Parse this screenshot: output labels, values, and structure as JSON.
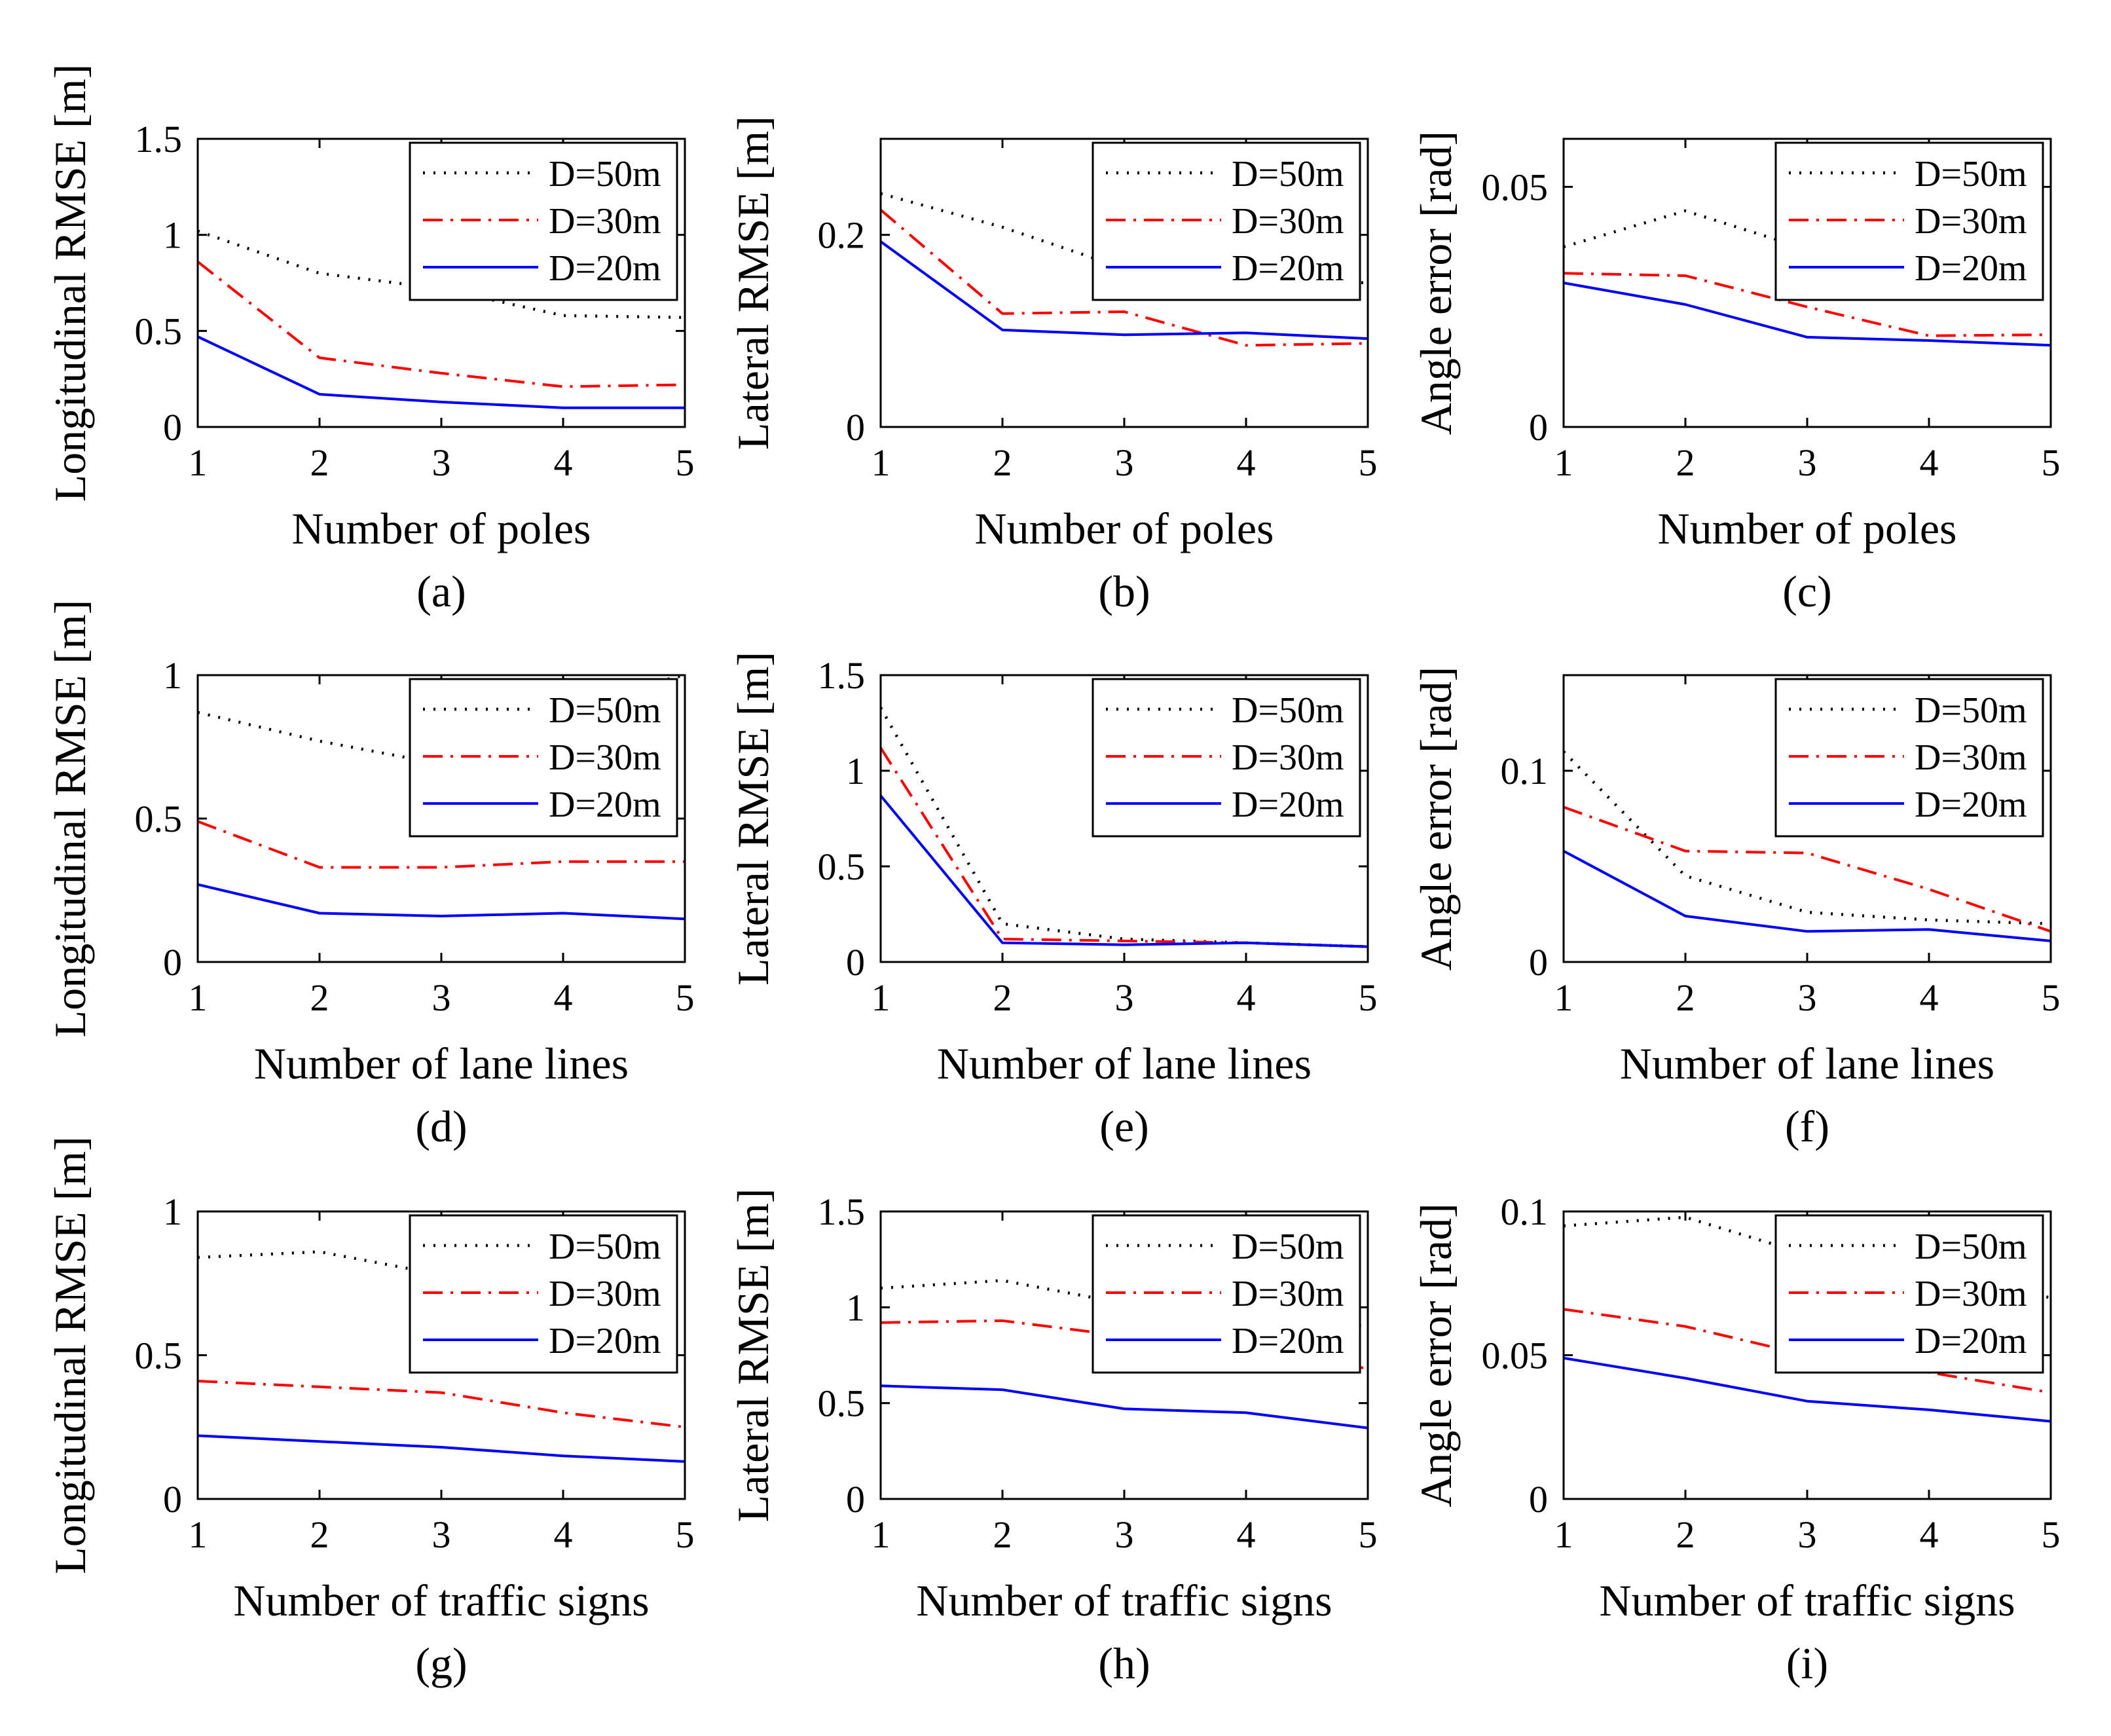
{
  "legend": {
    "entries": [
      "D=50m",
      "D=30m",
      "D=20m"
    ]
  },
  "series_styles": [
    {
      "name": "D=50m",
      "color": "#000000",
      "dash": "dotted"
    },
    {
      "name": "D=30m",
      "color": "#ff0000",
      "dash": "dashdot"
    },
    {
      "name": "D=20m",
      "color": "#0000ff",
      "dash": "solid"
    }
  ],
  "chart_data": [
    {
      "id": "a",
      "caption": "(a)",
      "type": "line",
      "xlabel": "Number of poles",
      "ylabel": "Longitudinal RMSE [m]",
      "x": [
        1,
        2,
        3,
        4,
        5
      ],
      "xlim": [
        1,
        5
      ],
      "xticks": [
        "1",
        "2",
        "3",
        "4",
        "5"
      ],
      "ylim": [
        0,
        1.5
      ],
      "yticks": [
        0,
        0.5,
        1,
        1.5
      ],
      "ytick_labels": [
        "0",
        "0.5",
        "1",
        "1.5"
      ],
      "legend": "top-right",
      "grid": false,
      "series": [
        {
          "name": "D=50m",
          "values": [
            1.02,
            0.8,
            0.72,
            0.58,
            0.57
          ]
        },
        {
          "name": "D=30m",
          "values": [
            0.86,
            0.36,
            0.28,
            0.21,
            0.22
          ]
        },
        {
          "name": "D=20m",
          "values": [
            0.47,
            0.17,
            0.13,
            0.1,
            0.1
          ]
        }
      ]
    },
    {
      "id": "b",
      "caption": "(b)",
      "type": "line",
      "xlabel": "Number of poles",
      "ylabel": "Lateral RMSE [m]",
      "x": [
        1,
        2,
        3,
        4,
        5
      ],
      "xlim": [
        1,
        5
      ],
      "xticks": [
        "1",
        "2",
        "3",
        "4",
        "5"
      ],
      "ylim": [
        0,
        0.3
      ],
      "yticks": [
        0,
        0.2
      ],
      "ytick_labels": [
        "0",
        "0.2"
      ],
      "legend": "top-right",
      "grid": false,
      "series": [
        {
          "name": "D=50m",
          "values": [
            0.243,
            0.208,
            0.165,
            0.155,
            0.15
          ]
        },
        {
          "name": "D=30m",
          "values": [
            0.226,
            0.118,
            0.12,
            0.085,
            0.087
          ]
        },
        {
          "name": "D=20m",
          "values": [
            0.193,
            0.101,
            0.096,
            0.098,
            0.092
          ]
        }
      ]
    },
    {
      "id": "c",
      "caption": "(c)",
      "type": "line",
      "xlabel": "Number of poles",
      "ylabel": "Angle error [rad]",
      "x": [
        1,
        2,
        3,
        4,
        5
      ],
      "xlim": [
        1,
        5
      ],
      "xticks": [
        "1",
        "2",
        "3",
        "4",
        "5"
      ],
      "ylim": [
        0,
        0.06
      ],
      "yticks": [
        0,
        0.05
      ],
      "ytick_labels": [
        "0",
        "0.05"
      ],
      "legend": "top-right",
      "grid": false,
      "series": [
        {
          "name": "D=50m",
          "values": [
            0.0375,
            0.045,
            0.037,
            0.042,
            0.047
          ]
        },
        {
          "name": "D=30m",
          "values": [
            0.032,
            0.0315,
            0.025,
            0.019,
            0.0192
          ]
        },
        {
          "name": "D=20m",
          "values": [
            0.03,
            0.0255,
            0.0187,
            0.018,
            0.017
          ]
        }
      ]
    },
    {
      "id": "d",
      "caption": "(d)",
      "type": "line",
      "xlabel": "Number of lane lines",
      "ylabel": "Longitudinal RMSE [m]",
      "x": [
        1,
        2,
        3,
        4,
        5
      ],
      "xlim": [
        1,
        5
      ],
      "xticks": [
        "1",
        "2",
        "3",
        "4",
        "5"
      ],
      "ylim": [
        0,
        1
      ],
      "yticks": [
        0,
        0.5,
        1
      ],
      "ytick_labels": [
        "0",
        "0.5",
        "1"
      ],
      "legend": "top-right",
      "grid": false,
      "series": [
        {
          "name": "D=50m",
          "values": [
            0.87,
            0.77,
            0.69,
            0.9,
            1.0
          ]
        },
        {
          "name": "D=30m",
          "values": [
            0.49,
            0.33,
            0.33,
            0.35,
            0.35
          ]
        },
        {
          "name": "D=20m",
          "values": [
            0.27,
            0.17,
            0.16,
            0.17,
            0.15
          ]
        }
      ]
    },
    {
      "id": "e",
      "caption": "(e)",
      "type": "line",
      "xlabel": "Number of lane lines",
      "ylabel": "Lateral RMSE [m]",
      "x": [
        1,
        2,
        3,
        4,
        5
      ],
      "xlim": [
        1,
        5
      ],
      "xticks": [
        "1",
        "2",
        "3",
        "4",
        "5"
      ],
      "ylim": [
        0,
        1.5
      ],
      "yticks": [
        0,
        0.5,
        1,
        1.5
      ],
      "ytick_labels": [
        "0",
        "0.5",
        "1",
        "1.5"
      ],
      "legend": "top-right",
      "grid": false,
      "series": [
        {
          "name": "D=50m",
          "values": [
            1.33,
            0.2,
            0.12,
            0.1,
            0.08
          ]
        },
        {
          "name": "D=30m",
          "values": [
            1.12,
            0.12,
            0.11,
            0.1,
            0.08
          ]
        },
        {
          "name": "D=20m",
          "values": [
            0.87,
            0.1,
            0.09,
            0.1,
            0.08
          ]
        }
      ]
    },
    {
      "id": "f",
      "caption": "(f)",
      "type": "line",
      "xlabel": "Number of lane lines",
      "ylabel": "Angle error [rad]",
      "x": [
        1,
        2,
        3,
        4,
        5
      ],
      "xlim": [
        1,
        5
      ],
      "xticks": [
        "1",
        "2",
        "3",
        "4",
        "5"
      ],
      "ylim": [
        0,
        0.15
      ],
      "yticks": [
        0,
        0.1
      ],
      "ytick_labels": [
        "0",
        "0.1"
      ],
      "legend": "top-right",
      "grid": false,
      "series": [
        {
          "name": "D=50m",
          "values": [
            0.11,
            0.045,
            0.026,
            0.022,
            0.02
          ]
        },
        {
          "name": "D=30m",
          "values": [
            0.081,
            0.058,
            0.057,
            0.038,
            0.016
          ]
        },
        {
          "name": "D=20m",
          "values": [
            0.058,
            0.024,
            0.016,
            0.017,
            0.011
          ]
        }
      ]
    },
    {
      "id": "g",
      "caption": "(g)",
      "type": "line",
      "xlabel": "Number of traffic signs",
      "ylabel": "Longitudinal RMSE [m]",
      "x": [
        1,
        2,
        3,
        4,
        5
      ],
      "xlim": [
        1,
        5
      ],
      "xticks": [
        "1",
        "2",
        "3",
        "4",
        "5"
      ],
      "ylim": [
        0,
        1
      ],
      "yticks": [
        0,
        0.5,
        1
      ],
      "ytick_labels": [
        "0",
        "0.5",
        "1"
      ],
      "legend": "top-right",
      "grid": false,
      "series": [
        {
          "name": "D=50m",
          "values": [
            0.84,
            0.86,
            0.78,
            0.7,
            0.66
          ]
        },
        {
          "name": "D=30m",
          "values": [
            0.41,
            0.39,
            0.37,
            0.3,
            0.25
          ]
        },
        {
          "name": "D=20m",
          "values": [
            0.22,
            0.2,
            0.18,
            0.15,
            0.13
          ]
        }
      ]
    },
    {
      "id": "h",
      "caption": "(h)",
      "type": "line",
      "xlabel": "Number of traffic signs",
      "ylabel": "Lateral RMSE [m]",
      "x": [
        1,
        2,
        3,
        4,
        5
      ],
      "xlim": [
        1,
        5
      ],
      "xticks": [
        "1",
        "2",
        "3",
        "4",
        "5"
      ],
      "ylim": [
        0,
        1.5
      ],
      "yticks": [
        0,
        0.5,
        1,
        1.5
      ],
      "ytick_labels": [
        "0",
        "0.5",
        "1",
        "1.5"
      ],
      "legend": "top-right",
      "grid": false,
      "series": [
        {
          "name": "D=50m",
          "values": [
            1.1,
            1.14,
            1.02,
            0.95,
            0.9
          ]
        },
        {
          "name": "D=30m",
          "values": [
            0.92,
            0.93,
            0.85,
            0.78,
            0.68
          ]
        },
        {
          "name": "D=20m",
          "values": [
            0.59,
            0.57,
            0.47,
            0.45,
            0.37
          ]
        }
      ]
    },
    {
      "id": "i",
      "caption": "(i)",
      "type": "line",
      "xlabel": "Number of traffic signs",
      "ylabel": "Angle error [rad]",
      "x": [
        1,
        2,
        3,
        4,
        5
      ],
      "xlim": [
        1,
        5
      ],
      "xticks": [
        "1",
        "2",
        "3",
        "4",
        "5"
      ],
      "ylim": [
        0,
        0.1
      ],
      "yticks": [
        0,
        0.05,
        0.1
      ],
      "ytick_labels": [
        "0",
        "0.05",
        "0.1"
      ],
      "legend": "top-right",
      "grid": false,
      "series": [
        {
          "name": "D=50m",
          "values": [
            0.095,
            0.098,
            0.085,
            0.078,
            0.07
          ]
        },
        {
          "name": "D=30m",
          "values": [
            0.066,
            0.06,
            0.05,
            0.044,
            0.037
          ]
        },
        {
          "name": "D=20m",
          "values": [
            0.049,
            0.042,
            0.034,
            0.031,
            0.027
          ]
        }
      ]
    }
  ]
}
